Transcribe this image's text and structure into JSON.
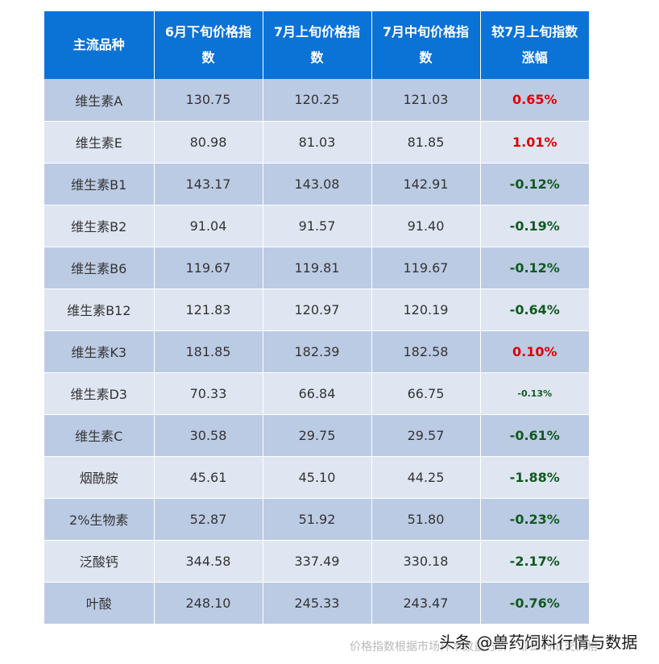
{
  "table": {
    "headers": [
      "主流品种",
      "6月下旬价格指数",
      "7月上旬价格指数",
      "7月中旬价格指数",
      "较7月上旬指数涨幅"
    ],
    "rows": [
      {
        "name": "维生素A",
        "jun_late": "130.75",
        "jul_early": "120.25",
        "jul_mid": "121.03",
        "change": "0.65%",
        "direction": "up"
      },
      {
        "name": "维生素E",
        "jun_late": "80.98",
        "jul_early": "81.03",
        "jul_mid": "81.85",
        "change": "1.01%",
        "direction": "up"
      },
      {
        "name": "维生素B1",
        "jun_late": "143.17",
        "jul_early": "143.08",
        "jul_mid": "142.91",
        "change": "-0.12%",
        "direction": "down"
      },
      {
        "name": "维生素B2",
        "jun_late": "91.04",
        "jul_early": "91.57",
        "jul_mid": "91.40",
        "change": "-0.19%",
        "direction": "down"
      },
      {
        "name": "维生素B6",
        "jun_late": "119.67",
        "jul_early": "119.81",
        "jul_mid": "119.67",
        "change": "-0.12%",
        "direction": "down"
      },
      {
        "name": "维生素B12",
        "jun_late": "121.83",
        "jul_early": "120.97",
        "jul_mid": "120.19",
        "change": "-0.64%",
        "direction": "down"
      },
      {
        "name": "维生素K3",
        "jun_late": "181.85",
        "jul_early": "182.39",
        "jul_mid": "182.58",
        "change": "0.10%",
        "direction": "up"
      },
      {
        "name": "维生素D3",
        "jun_late": "70.33",
        "jul_early": "66.84",
        "jul_mid": "66.75",
        "change": "-0.13%",
        "direction": "down"
      },
      {
        "name": "维生素C",
        "jun_late": "30.58",
        "jul_early": "29.75",
        "jul_mid": "29.57",
        "change": "-0.61%",
        "direction": "down"
      },
      {
        "name": "烟酰胺",
        "jun_late": "45.61",
        "jul_early": "45.10",
        "jul_mid": "44.25",
        "change": "-1.88%",
        "direction": "down"
      },
      {
        "name": "2%生物素",
        "jun_late": "52.87",
        "jul_early": "51.92",
        "jul_mid": "51.80",
        "change": "-0.23%",
        "direction": "down"
      },
      {
        "name": "泛酸钙",
        "jun_late": "344.58",
        "jul_early": "337.49",
        "jul_mid": "330.18",
        "change": "-2.17%",
        "direction": "down"
      },
      {
        "name": "叶酸",
        "jun_late": "248.10",
        "jul_early": "245.33",
        "jul_mid": "243.47",
        "change": "-0.76%",
        "direction": "down"
      }
    ]
  },
  "colors": {
    "header_bg": "#0b72d6",
    "row_odd": "#bccbe4",
    "row_even": "#dfe6f2",
    "increase": "#e00000",
    "decrease": "#0f5a1f"
  },
  "footer": {
    "note": "价格指数根据市场样本数量分析，非即时成交价格",
    "watermark": "头条 @兽药饲料行情与数据"
  }
}
